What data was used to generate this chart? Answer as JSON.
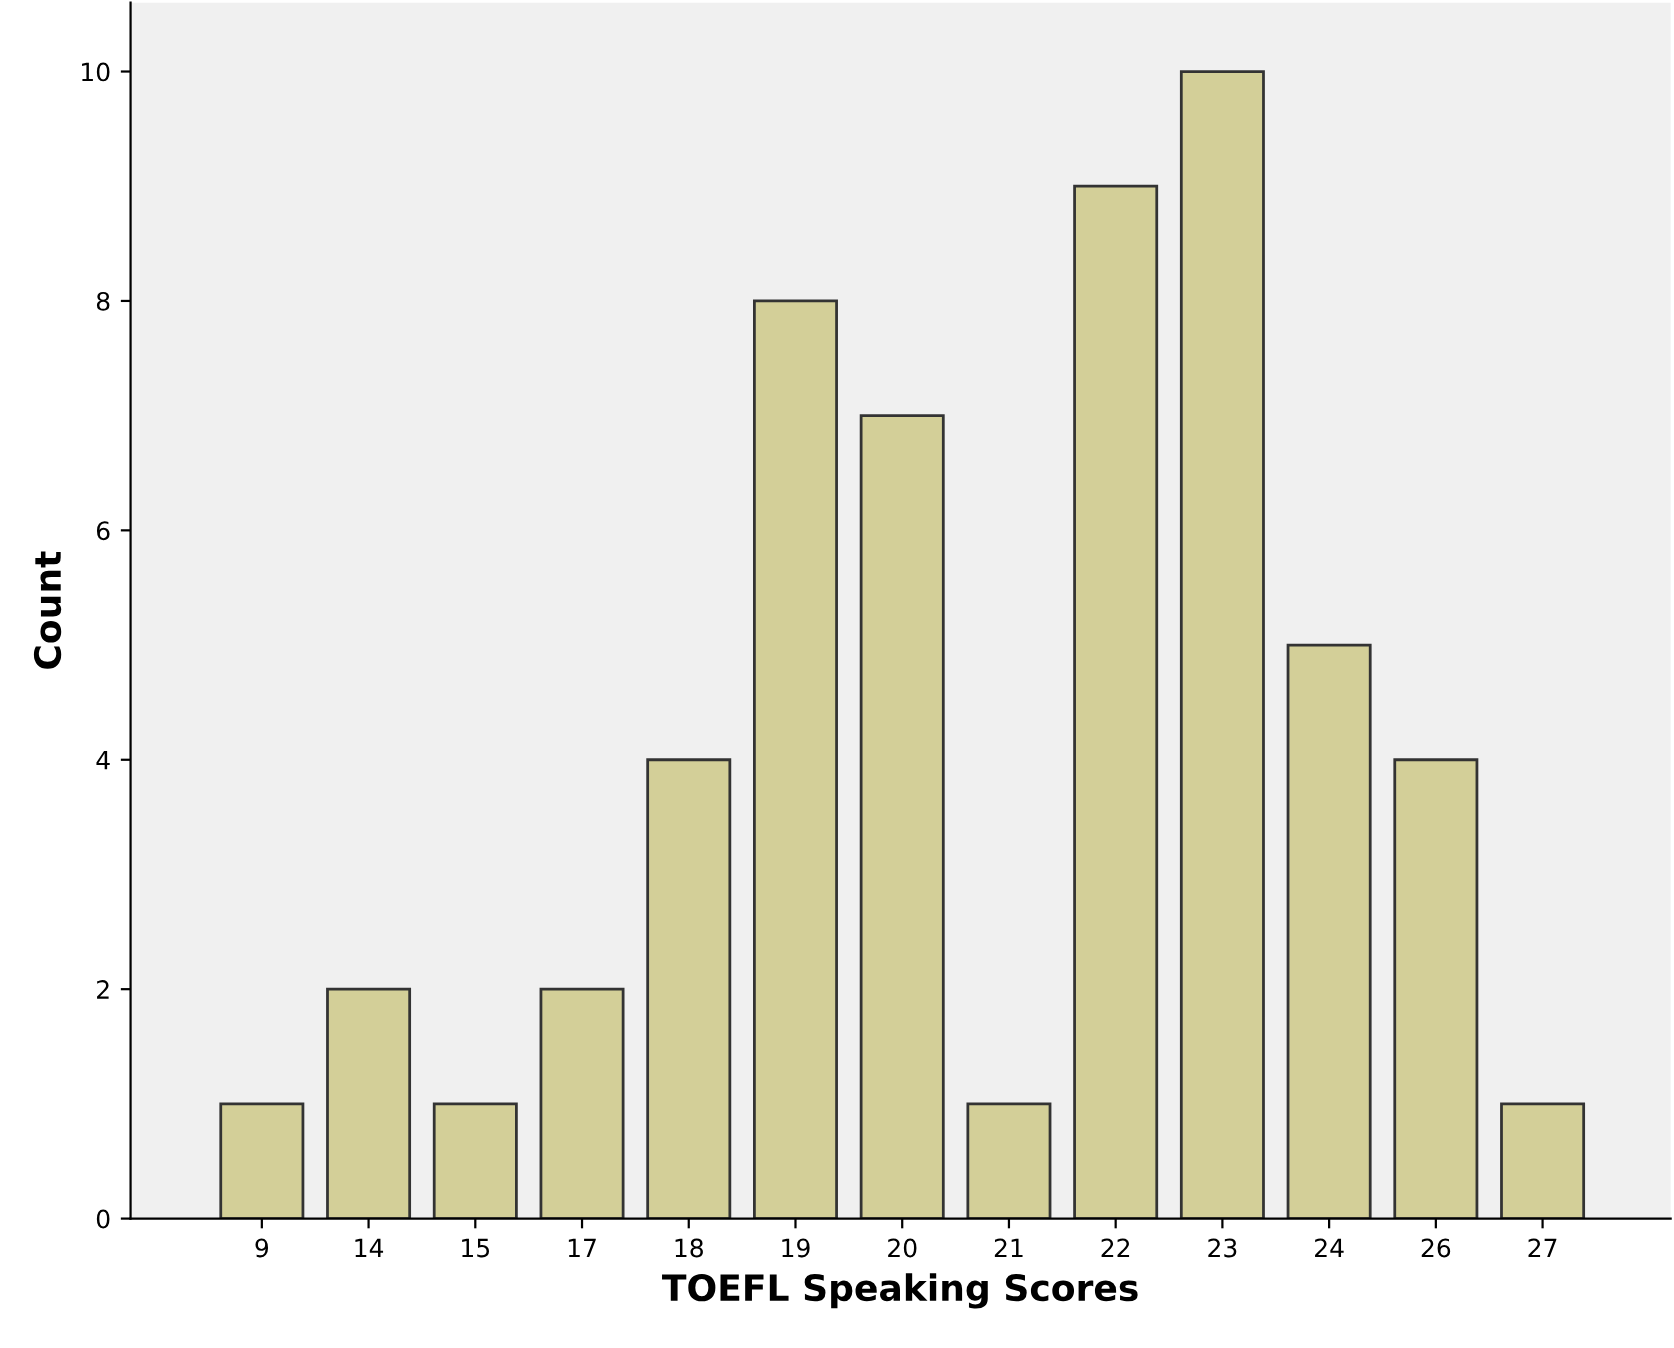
{
  "chart_data": {
    "type": "bar",
    "xlabel": "TOEFL Speaking Scores",
    "ylabel": "Count",
    "categories": [
      "9",
      "14",
      "15",
      "17",
      "18",
      "19",
      "20",
      "21",
      "22",
      "23",
      "24",
      "26",
      "27"
    ],
    "values": [
      1,
      2,
      1,
      2,
      4,
      8,
      7,
      1,
      9,
      10,
      5,
      4,
      1
    ],
    "color": "#d3cf98",
    "ylim": [
      0,
      10.6
    ],
    "yticks": [
      0,
      2,
      4,
      6,
      8,
      10
    ],
    "grid": false,
    "legend": false
  }
}
